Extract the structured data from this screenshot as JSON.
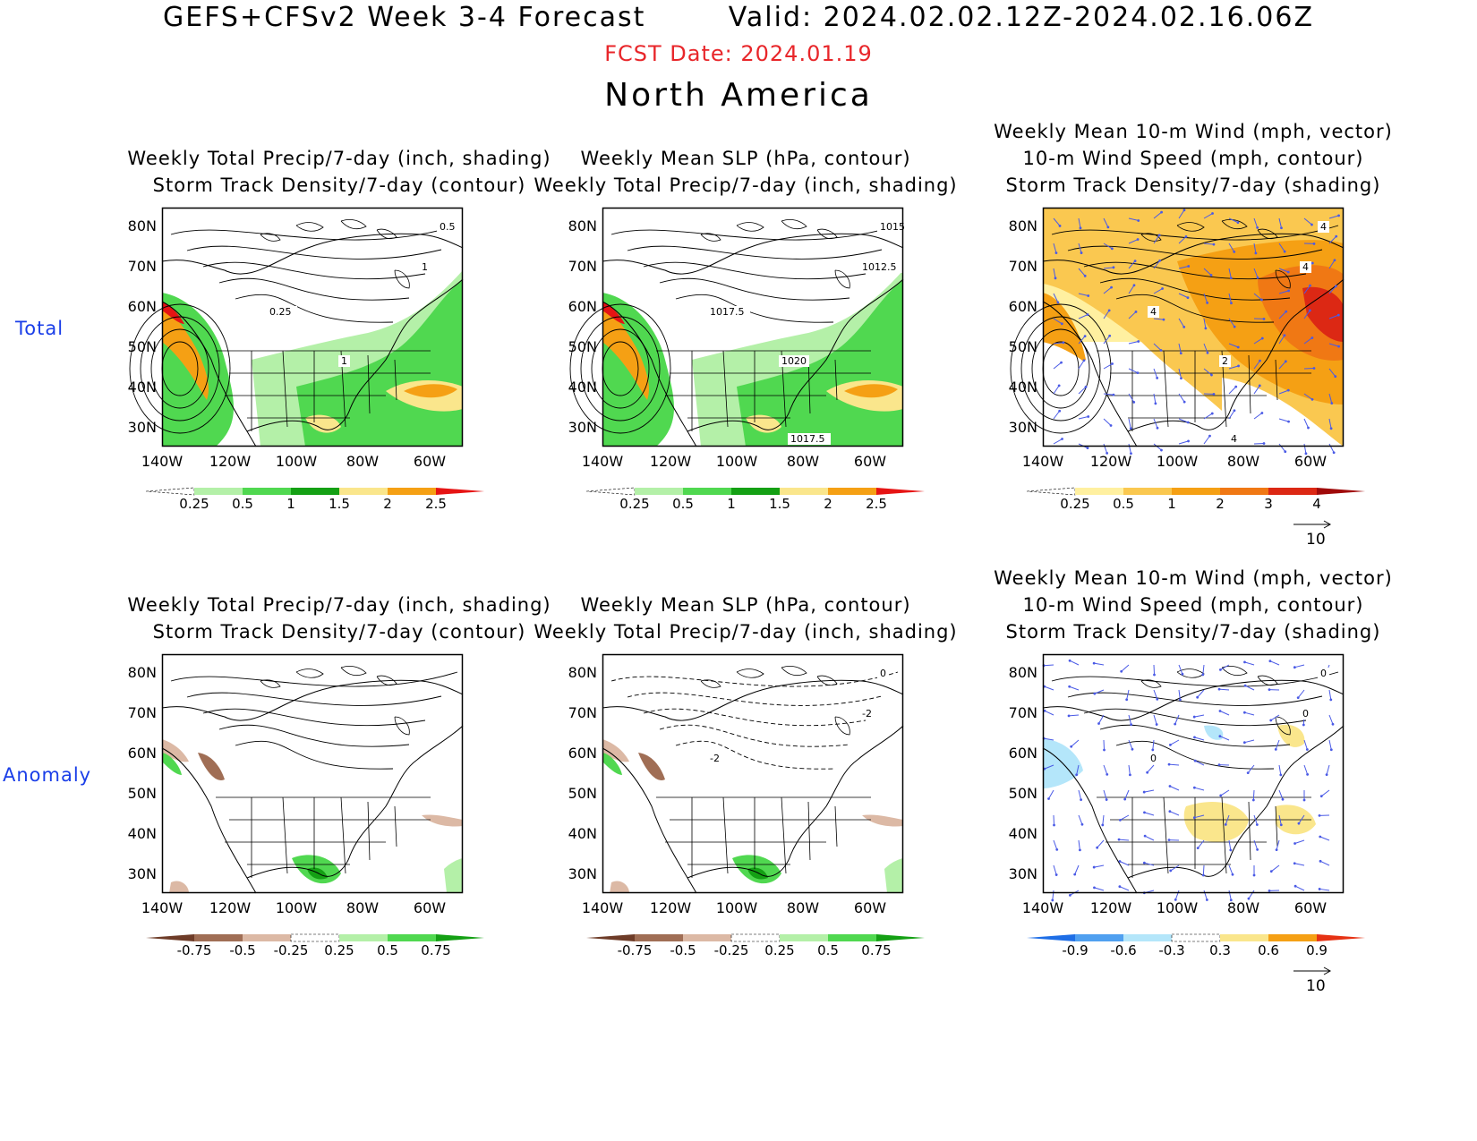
{
  "header": {
    "title": "GEFS+CFSv2 Week 3-4 Forecast        Valid: 2024.02.02.12Z-2024.02.16.06Z",
    "fcst_date": "FCST Date: 2024.01.19",
    "region": "North America"
  },
  "rows": [
    {
      "label": "Total"
    },
    {
      "label": "Anomaly"
    }
  ],
  "axes": {
    "lat_labels": [
      "80N",
      "70N",
      "60N",
      "50N",
      "40N",
      "30N"
    ],
    "lon_labels": [
      "140W",
      "120W",
      "100W",
      "80W",
      "60W"
    ]
  },
  "panels": [
    {
      "title_lines": [
        "Weekly Total Precip/7-day (inch, shading)",
        "Storm Track Density/7-day (contour)"
      ],
      "colorbar": {
        "labels": [
          "0.25",
          "0.5",
          "1",
          "1.5",
          "2",
          "2.5"
        ],
        "colors": [
          "#ffffff",
          "#b4f0a8",
          "#50d850",
          "#14a014",
          "#fae68c",
          "#f5a014",
          "#e61414"
        ]
      },
      "contour_labels": [
        "0.5",
        "1",
        "0.25",
        "1"
      ]
    },
    {
      "title_lines": [
        "Weekly Mean SLP (hPa, contour)",
        "Weekly Total Precip/7-day (inch, shading)"
      ],
      "colorbar": {
        "labels": [
          "0.25",
          "0.5",
          "1",
          "1.5",
          "2",
          "2.5"
        ],
        "colors": [
          "#ffffff",
          "#b4f0a8",
          "#50d850",
          "#14a014",
          "#fae68c",
          "#f5a014",
          "#e61414"
        ]
      },
      "contour_labels": [
        "1015",
        "1012.5",
        "1017.5",
        "1020",
        "1017.5"
      ]
    },
    {
      "title_lines": [
        "Weekly Mean 10-m Wind (mph, vector)",
        "10-m Wind Speed (mph, contour)",
        "Storm Track Density/7-day (shading)"
      ],
      "colorbar": {
        "labels": [
          "0.25",
          "0.5",
          "1",
          "2",
          "3",
          "4"
        ],
        "colors": [
          "#ffffff",
          "#fff0a0",
          "#fac850",
          "#f5a014",
          "#f07814",
          "#dc2814",
          "#a00a0a"
        ]
      },
      "contour_labels": [
        "4",
        "4",
        "4",
        "2",
        "4"
      ],
      "vector_ref": "10"
    },
    {
      "title_lines": [
        "Weekly Total Precip/7-day (inch, shading)",
        "Storm Track Density/7-day (contour)"
      ],
      "colorbar": {
        "labels": [
          "-0.75",
          "-0.5",
          "-0.25",
          "0.25",
          "0.5",
          "0.75"
        ],
        "colors": [
          "#6e3c28",
          "#a06e55",
          "#dcb9a5",
          "#ffffff",
          "#b4f0a8",
          "#50d850",
          "#14a014"
        ]
      },
      "contour_labels": []
    },
    {
      "title_lines": [
        "Weekly Mean SLP (hPa, contour)",
        "Weekly Total Precip/7-day (inch, shading)"
      ],
      "colorbar": {
        "labels": [
          "-0.75",
          "-0.5",
          "-0.25",
          "0.25",
          "0.5",
          "0.75"
        ],
        "colors": [
          "#6e3c28",
          "#a06e55",
          "#dcb9a5",
          "#ffffff",
          "#b4f0a8",
          "#50d850",
          "#14a014"
        ]
      },
      "contour_labels": [
        "0",
        "-2",
        "-2"
      ]
    },
    {
      "title_lines": [
        "Weekly Mean 10-m Wind (mph, vector)",
        "10-m Wind Speed (mph, contour)",
        "Storm Track Density/7-day (shading)"
      ],
      "colorbar": {
        "labels": [
          "-0.9",
          "-0.6",
          "-0.3",
          "0.3",
          "0.6",
          "0.9"
        ],
        "colors": [
          "#1e6ee6",
          "#50a0f0",
          "#b4e6fa",
          "#ffffff",
          "#fae68c",
          "#f5a014",
          "#e63214"
        ]
      },
      "contour_labels": [
        "0",
        "0",
        "0"
      ],
      "vector_ref": "10"
    }
  ]
}
